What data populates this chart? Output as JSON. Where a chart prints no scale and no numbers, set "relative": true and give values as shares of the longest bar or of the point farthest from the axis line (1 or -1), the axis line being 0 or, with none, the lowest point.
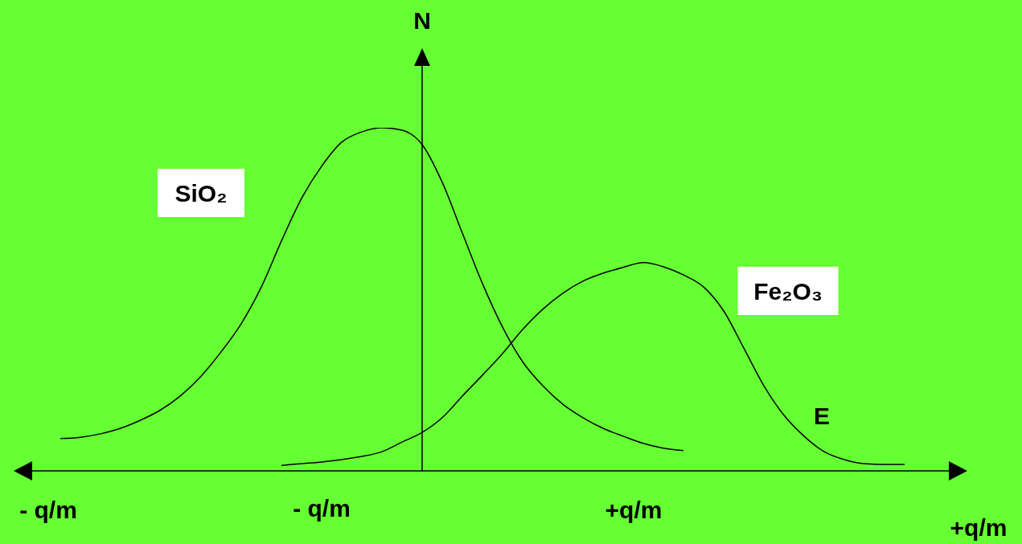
{
  "chart_data": {
    "type": "line",
    "relative": true,
    "ylabel": "N",
    "xlabel": "+q/m",
    "annotations": [
      "- q/m",
      "- q/m",
      "+q/m",
      "E"
    ],
    "categories": [
      null,
      null,
      null,
      null,
      null,
      null,
      null,
      null,
      null,
      null,
      null,
      null,
      null,
      null,
      null,
      null,
      null,
      null,
      null,
      null,
      null,
      null,
      null,
      null,
      null,
      null,
      null,
      null,
      null,
      null,
      null,
      null,
      null,
      null,
      null,
      null,
      null,
      null,
      null,
      null,
      null,
      null,
      null,
      null,
      null,
      null,
      null,
      null
    ],
    "series": [
      {
        "name": "SiO₂",
        "color": "#000000",
        "values": [
          null,
          null,
          0.094,
          0.098,
          0.108,
          0.124,
          0.148,
          0.178,
          0.22,
          0.276,
          0.347,
          0.429,
          0.536,
          0.67,
          0.794,
          0.888,
          0.958,
          0.988,
          1.0,
          0.993,
          0.951,
          0.841,
          0.693,
          0.546,
          0.419,
          0.318,
          0.248,
          0.194,
          0.155,
          0.124,
          0.101,
          0.08,
          0.066,
          0.059,
          null,
          null,
          null,
          null,
          null,
          null,
          null,
          null,
          null,
          null,
          null,
          null,
          null,
          null
        ]
      },
      {
        "name": "Fe₂O₃",
        "color": "#000000",
        "values": [
          null,
          null,
          null,
          null,
          null,
          null,
          null,
          null,
          null,
          null,
          null,
          null,
          null,
          0.016,
          0.021,
          0.026,
          0.033,
          0.042,
          0.056,
          0.084,
          0.112,
          0.155,
          0.218,
          0.279,
          0.342,
          0.412,
          0.471,
          0.518,
          0.553,
          0.576,
          0.593,
          0.607,
          0.595,
          0.571,
          0.536,
          0.466,
          0.358,
          0.248,
          0.162,
          0.101,
          0.056,
          0.033,
          0.021,
          0.019,
          0.019,
          null,
          null,
          null
        ]
      }
    ]
  }
}
